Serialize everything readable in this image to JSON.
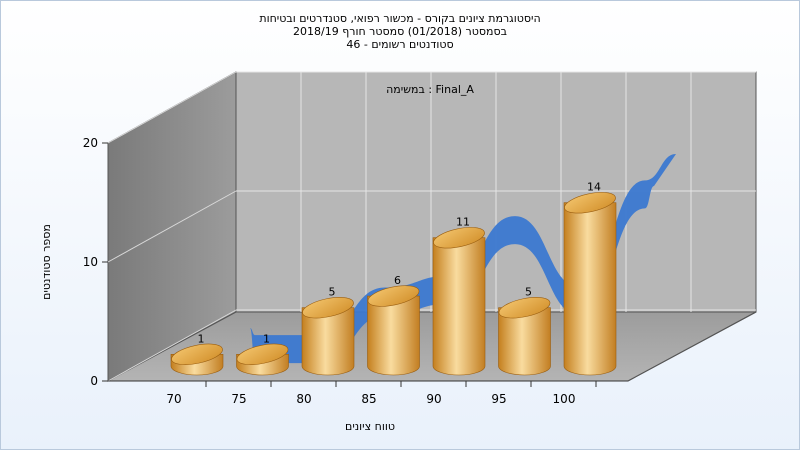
{
  "chart_data": {
    "type": "bar",
    "title_lines": [
      "היסטוגרמת ציונים בקורס - מכשור רפואי, סטנדרטים ובטיחות",
      "בסמסטר  (01/2018)  סמסטר חורף 2018/19",
      "סטודנטים רשומים - 46"
    ],
    "task_label": "במשימה : Final_A",
    "xlabel": "טווח ציונים",
    "ylabel": "מספר סטודנטים",
    "x_ticks": [
      "70",
      "75",
      "80",
      "85",
      "90",
      "95",
      "100"
    ],
    "y_ticks": [
      0,
      10,
      20
    ],
    "ylim": [
      0,
      20
    ],
    "categories": [
      "70",
      "75",
      "80",
      "85",
      "90",
      "95",
      "100"
    ],
    "values": [
      1,
      1,
      5,
      6,
      11,
      5,
      14
    ],
    "value_labels": [
      "1",
      "1",
      "5",
      "6",
      "11",
      "5",
      "14"
    ],
    "grid": true,
    "colors": {
      "bar_light": "#f8d89a",
      "bar_mid": "#e2a33c",
      "bar_dark": "#b06f14",
      "ribbon": "#3b78d0",
      "back_wall": "#b7b7b7",
      "side_wall": "#8a8a8a",
      "floor": "#a9a9a9"
    }
  }
}
